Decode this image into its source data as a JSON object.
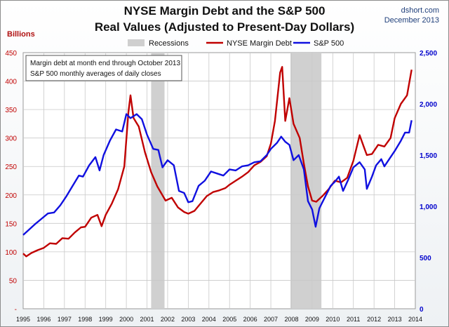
{
  "header": {
    "title_line1": "NYSE Margin Debt and the S&P 500",
    "title_line2": "Real Values (Adjusted to Present-Day Dollars)",
    "source": "dshort.com",
    "date": "December 2013",
    "left_unit": "Billions"
  },
  "chart_data": {
    "type": "line",
    "title": "NYSE Margin Debt and the S&P 500 Real Values (Adjusted to Present-Day Dollars)",
    "left_axis": {
      "label": "Billions",
      "min": 0,
      "max": 450,
      "ticks": [
        0,
        50,
        100,
        150,
        200,
        250,
        300,
        350,
        400,
        450
      ],
      "tick_labels": [
        "-",
        "50",
        "100",
        "150",
        "200",
        "250",
        "300",
        "350",
        "400",
        "450"
      ],
      "color": "#c00000"
    },
    "right_axis": {
      "min": 0,
      "max": 2500,
      "ticks": [
        0,
        500,
        1000,
        1500,
        2000,
        2500
      ],
      "tick_labels": [
        "0",
        "500",
        "1,000",
        "1,500",
        "2,000",
        "2,500"
      ],
      "color": "#0000cc"
    },
    "x_axis": {
      "min": 1995,
      "max": 2014,
      "ticks": [
        1995,
        1996,
        1997,
        1998,
        1999,
        2000,
        2001,
        2002,
        2003,
        2004,
        2005,
        2006,
        2007,
        2008,
        2009,
        2010,
        2011,
        2012,
        2013,
        2014
      ],
      "tick_labels": [
        "1995",
        "1996",
        "1997",
        "1998",
        "1999",
        "2000",
        "2001",
        "2002",
        "2003",
        "2004",
        "2005",
        "2006",
        "2007",
        "2008",
        "2009",
        "2010",
        "2011",
        "2012",
        "2013",
        "2014"
      ]
    },
    "grid": true,
    "legend": {
      "position": "top",
      "items": [
        {
          "name": "Recessions",
          "kind": "band",
          "color": "#cfcfcf"
        },
        {
          "name": "NYSE Margin Debt",
          "kind": "line",
          "color": "#c00000"
        },
        {
          "name": "S&P 500",
          "kind": "line",
          "color": "#1010e0"
        }
      ]
    },
    "annotation": [
      "Margin debt at month end through  October 2013",
      "S&P 500 monthly averages of daily closes"
    ],
    "recessions": [
      {
        "start": 2001.2,
        "end": 2001.85
      },
      {
        "start": 2007.95,
        "end": 2009.45
      }
    ],
    "series": [
      {
        "name": "NYSE Margin Debt",
        "axis": "left",
        "color": "#c00000",
        "points": [
          [
            1995.0,
            97
          ],
          [
            1995.15,
            92
          ],
          [
            1995.4,
            98
          ],
          [
            1995.7,
            103
          ],
          [
            1996.0,
            107
          ],
          [
            1996.3,
            115
          ],
          [
            1996.6,
            114
          ],
          [
            1996.9,
            124
          ],
          [
            1997.2,
            123
          ],
          [
            1997.5,
            134
          ],
          [
            1997.8,
            143
          ],
          [
            1998.0,
            144
          ],
          [
            1998.3,
            160
          ],
          [
            1998.6,
            165
          ],
          [
            1998.8,
            145
          ],
          [
            1999.0,
            165
          ],
          [
            1999.3,
            185
          ],
          [
            1999.6,
            210
          ],
          [
            1999.9,
            250
          ],
          [
            2000.1,
            345
          ],
          [
            2000.2,
            375
          ],
          [
            2000.35,
            335
          ],
          [
            2000.6,
            320
          ],
          [
            2000.9,
            275
          ],
          [
            2001.2,
            240
          ],
          [
            2001.5,
            215
          ],
          [
            2001.9,
            190
          ],
          [
            2002.2,
            195
          ],
          [
            2002.5,
            178
          ],
          [
            2002.8,
            170
          ],
          [
            2003.0,
            167
          ],
          [
            2003.3,
            172
          ],
          [
            2003.6,
            185
          ],
          [
            2003.9,
            198
          ],
          [
            2004.2,
            205
          ],
          [
            2004.5,
            208
          ],
          [
            2004.8,
            212
          ],
          [
            2005.0,
            218
          ],
          [
            2005.3,
            225
          ],
          [
            2005.6,
            232
          ],
          [
            2005.9,
            240
          ],
          [
            2006.2,
            252
          ],
          [
            2006.5,
            258
          ],
          [
            2006.8,
            268
          ],
          [
            2007.0,
            290
          ],
          [
            2007.2,
            330
          ],
          [
            2007.45,
            415
          ],
          [
            2007.55,
            425
          ],
          [
            2007.7,
            330
          ],
          [
            2007.9,
            370
          ],
          [
            2008.1,
            325
          ],
          [
            2008.4,
            300
          ],
          [
            2008.6,
            255
          ],
          [
            2008.8,
            215
          ],
          [
            2009.0,
            190
          ],
          [
            2009.2,
            188
          ],
          [
            2009.5,
            198
          ],
          [
            2009.8,
            210
          ],
          [
            2010.1,
            225
          ],
          [
            2010.4,
            222
          ],
          [
            2010.7,
            230
          ],
          [
            2011.0,
            260
          ],
          [
            2011.3,
            305
          ],
          [
            2011.5,
            285
          ],
          [
            2011.65,
            270
          ],
          [
            2011.9,
            272
          ],
          [
            2012.2,
            288
          ],
          [
            2012.5,
            285
          ],
          [
            2012.8,
            300
          ],
          [
            2013.0,
            335
          ],
          [
            2013.3,
            360
          ],
          [
            2013.6,
            375
          ],
          [
            2013.82,
            420
          ]
        ]
      },
      {
        "name": "S&P 500",
        "axis": "right",
        "color": "#1010e0",
        "points": [
          [
            1995.0,
            720
          ],
          [
            1995.3,
            775
          ],
          [
            1995.6,
            830
          ],
          [
            1995.9,
            880
          ],
          [
            1996.2,
            930
          ],
          [
            1996.5,
            940
          ],
          [
            1996.8,
            1010
          ],
          [
            1997.1,
            1100
          ],
          [
            1997.4,
            1200
          ],
          [
            1997.7,
            1300
          ],
          [
            1997.9,
            1290
          ],
          [
            1998.2,
            1400
          ],
          [
            1998.5,
            1480
          ],
          [
            1998.7,
            1350
          ],
          [
            1998.9,
            1500
          ],
          [
            1999.2,
            1640
          ],
          [
            1999.5,
            1750
          ],
          [
            1999.8,
            1730
          ],
          [
            2000.0,
            1900
          ],
          [
            2000.2,
            1860
          ],
          [
            2000.5,
            1900
          ],
          [
            2000.75,
            1850
          ],
          [
            2001.0,
            1700
          ],
          [
            2001.3,
            1560
          ],
          [
            2001.55,
            1550
          ],
          [
            2001.75,
            1380
          ],
          [
            2002.0,
            1450
          ],
          [
            2002.3,
            1400
          ],
          [
            2002.55,
            1150
          ],
          [
            2002.8,
            1130
          ],
          [
            2003.0,
            1040
          ],
          [
            2003.2,
            1050
          ],
          [
            2003.5,
            1200
          ],
          [
            2003.8,
            1250
          ],
          [
            2004.1,
            1340
          ],
          [
            2004.4,
            1320
          ],
          [
            2004.7,
            1300
          ],
          [
            2005.0,
            1360
          ],
          [
            2005.3,
            1350
          ],
          [
            2005.6,
            1390
          ],
          [
            2005.9,
            1400
          ],
          [
            2006.2,
            1430
          ],
          [
            2006.5,
            1440
          ],
          [
            2006.8,
            1500
          ],
          [
            2007.0,
            1560
          ],
          [
            2007.3,
            1620
          ],
          [
            2007.5,
            1680
          ],
          [
            2007.7,
            1630
          ],
          [
            2007.9,
            1600
          ],
          [
            2008.1,
            1450
          ],
          [
            2008.35,
            1500
          ],
          [
            2008.6,
            1360
          ],
          [
            2008.8,
            1050
          ],
          [
            2009.0,
            970
          ],
          [
            2009.17,
            800
          ],
          [
            2009.35,
            980
          ],
          [
            2009.6,
            1080
          ],
          [
            2009.9,
            1200
          ],
          [
            2010.1,
            1240
          ],
          [
            2010.3,
            1290
          ],
          [
            2010.5,
            1150
          ],
          [
            2010.75,
            1260
          ],
          [
            2011.0,
            1380
          ],
          [
            2011.3,
            1430
          ],
          [
            2011.55,
            1360
          ],
          [
            2011.65,
            1170
          ],
          [
            2011.9,
            1290
          ],
          [
            2012.1,
            1400
          ],
          [
            2012.35,
            1460
          ],
          [
            2012.5,
            1390
          ],
          [
            2012.8,
            1480
          ],
          [
            2013.0,
            1540
          ],
          [
            2013.3,
            1640
          ],
          [
            2013.5,
            1720
          ],
          [
            2013.7,
            1720
          ],
          [
            2013.82,
            1840
          ]
        ]
      }
    ]
  }
}
